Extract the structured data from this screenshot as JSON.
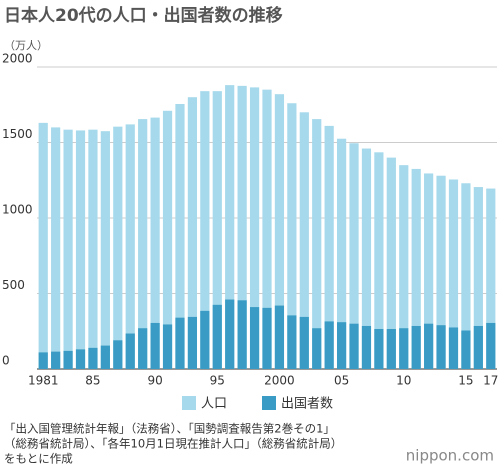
{
  "chart_data": {
    "type": "bar",
    "title": "日本人20代の人口・出国者数の推移",
    "y_label": "（万人）",
    "categories": [
      "1981",
      null,
      null,
      null,
      "85",
      null,
      null,
      null,
      null,
      "90",
      null,
      null,
      null,
      null,
      "95",
      null,
      null,
      null,
      null,
      "2000",
      null,
      null,
      null,
      null,
      "05",
      null,
      null,
      null,
      null,
      "10",
      null,
      null,
      null,
      null,
      "15",
      null,
      "17"
    ],
    "series": [
      {
        "name": "人口",
        "color": "#a6d9eb",
        "values": [
          1630,
          1600,
          1585,
          1580,
          1585,
          1575,
          1605,
          1620,
          1655,
          1665,
          1710,
          1755,
          1800,
          1840,
          1840,
          1880,
          1875,
          1865,
          1850,
          1820,
          1760,
          1700,
          1655,
          1610,
          1525,
          1495,
          1460,
          1435,
          1400,
          1350,
          1325,
          1295,
          1280,
          1255,
          1230,
          1205,
          1195
        ]
      },
      {
        "name": "出国者数",
        "color": "#3a9cc4",
        "values": [
          110,
          115,
          120,
          130,
          140,
          155,
          190,
          235,
          270,
          305,
          295,
          340,
          345,
          385,
          425,
          460,
          455,
          410,
          405,
          420,
          355,
          345,
          270,
          315,
          310,
          300,
          285,
          265,
          265,
          270,
          285,
          300,
          290,
          275,
          255,
          285,
          305
        ]
      }
    ],
    "ylim": [
      0,
      2000
    ],
    "yticks": [
      0,
      500,
      1000,
      1500,
      2000
    ],
    "grid": true,
    "source": [
      "「出入国管理統計年報」（法務省）、「国勢調査報告第2巻その1」",
      "（総務省統計局）、「各年10月1日現在推計人口」（総務省統計局）",
      "をもとに作成"
    ],
    "logo": "nippon.com"
  }
}
